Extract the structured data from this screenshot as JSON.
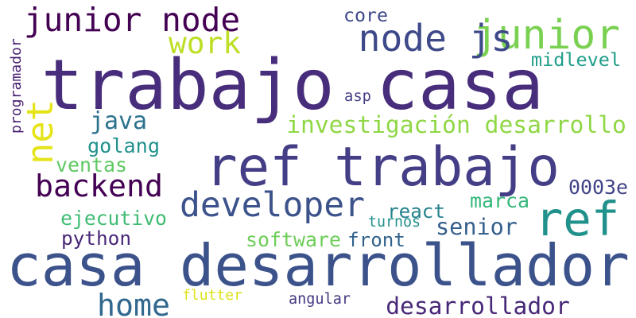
{
  "words": [
    {
      "text": "trabajo casa",
      "color": "#472d7b"
    },
    {
      "text": "casa desarrollador",
      "color": "#3b528b"
    },
    {
      "text": "ref trabajo",
      "color": "#433e85"
    },
    {
      "text": "junior",
      "color": "#7ad151"
    },
    {
      "text": "ref",
      "color": "#21918c"
    },
    {
      "text": "junior node",
      "color": "#440154"
    },
    {
      "text": "node js",
      "color": "#3e4989"
    },
    {
      "text": "developer",
      "color": "#3b528b"
    },
    {
      "text": "backend",
      "color": "#440154"
    },
    {
      "text": "home",
      "color": "#31688e"
    },
    {
      "text": "net",
      "color": "#e5e419"
    },
    {
      "text": "work",
      "color": "#bddf26"
    },
    {
      "text": "investigación desarrollo",
      "color": "#8fd744"
    },
    {
      "text": "desarrollador",
      "color": "#482878"
    },
    {
      "text": "java",
      "color": "#2c728e"
    },
    {
      "text": "core",
      "color": "#3e4989"
    },
    {
      "text": "midlevel",
      "color": "#1f9e89"
    },
    {
      "text": "golang",
      "color": "#21918c"
    },
    {
      "text": "ventas",
      "color": "#5ec962"
    },
    {
      "text": "senior",
      "color": "#355f8d"
    },
    {
      "text": "react",
      "color": "#26828e"
    },
    {
      "text": "marca",
      "color": "#35b779"
    },
    {
      "text": "ejecutivo",
      "color": "#3fbc73"
    },
    {
      "text": "python",
      "color": "#482878"
    },
    {
      "text": "0003e",
      "color": "#414487"
    },
    {
      "text": "software",
      "color": "#6ece58"
    },
    {
      "text": "front",
      "color": "#33638d"
    },
    {
      "text": "turnos",
      "color": "#21918c"
    },
    {
      "text": "asp",
      "color": "#433e85"
    },
    {
      "text": "flutter",
      "color": "#dde318"
    },
    {
      "text": "angular",
      "color": "#443983"
    },
    {
      "text": "programador",
      "color": "#481f70"
    }
  ]
}
